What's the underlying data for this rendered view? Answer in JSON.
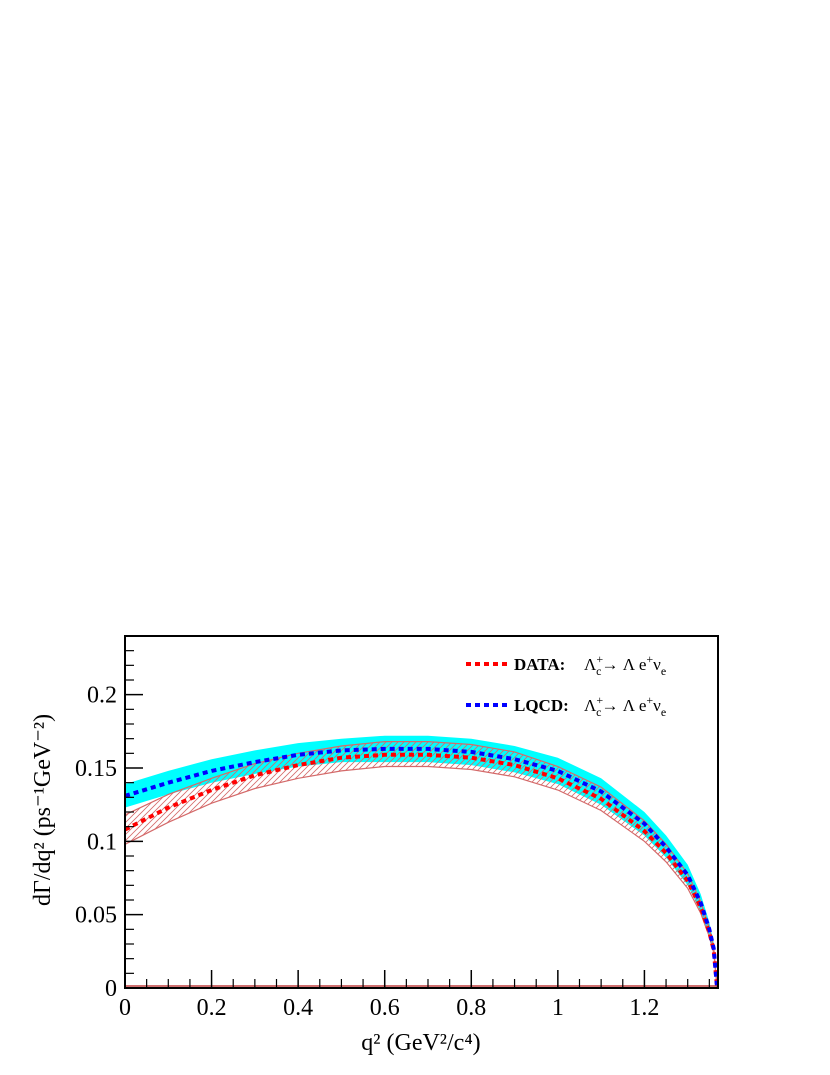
{
  "chart_data": {
    "type": "line",
    "title": "",
    "xlabel": "q² (GeV²/c⁴)",
    "ylabel": "dΓ/dq² (ps⁻¹GeV⁻²)",
    "xlim": [
      0,
      1.37
    ],
    "ylim": [
      0,
      0.24
    ],
    "x_ticks": [
      0,
      0.2,
      0.4,
      0.6,
      0.8,
      1,
      1.2
    ],
    "x_tick_labels": [
      "0",
      "0.2",
      "0.4",
      "0.6",
      "0.8",
      "1",
      "1.2"
    ],
    "y_ticks": [
      0,
      0.05,
      0.1,
      0.15,
      0.2
    ],
    "y_tick_labels": [
      "0",
      "0.05",
      "0.1",
      "0.15",
      "0.2"
    ],
    "grid": false,
    "legend_position": "top-right",
    "x": [
      0,
      0.1,
      0.2,
      0.3,
      0.4,
      0.5,
      0.6,
      0.7,
      0.8,
      0.9,
      1.0,
      1.1,
      1.2,
      1.25,
      1.3,
      1.33,
      1.35,
      1.36,
      1.368
    ],
    "series": [
      {
        "name": "DATA",
        "legend_label": "DATA:",
        "legend_formula": "Λc+→ Λ e+νe",
        "color": "#ff0000",
        "style": "dotted",
        "band": "hatched",
        "values": [
          0.108,
          0.123,
          0.135,
          0.145,
          0.152,
          0.157,
          0.159,
          0.159,
          0.157,
          0.152,
          0.143,
          0.129,
          0.107,
          0.092,
          0.073,
          0.055,
          0.038,
          0.026,
          0.0
        ],
        "upper": [
          0.118,
          0.132,
          0.143,
          0.153,
          0.16,
          0.165,
          0.168,
          0.168,
          0.166,
          0.161,
          0.151,
          0.137,
          0.114,
          0.098,
          0.078,
          0.059,
          0.041,
          0.028,
          0.0
        ],
        "lower": [
          0.098,
          0.113,
          0.126,
          0.136,
          0.143,
          0.148,
          0.151,
          0.151,
          0.149,
          0.144,
          0.135,
          0.121,
          0.1,
          0.086,
          0.068,
          0.051,
          0.035,
          0.024,
          0.0
        ]
      },
      {
        "name": "LQCD",
        "legend_label": "LQCD:",
        "legend_formula": "Λc+→ Λ e+νe",
        "color": "#0000ff",
        "style": "dotted",
        "band": "solid",
        "band_color": "#00ffff",
        "values": [
          0.131,
          0.14,
          0.148,
          0.154,
          0.159,
          0.162,
          0.163,
          0.163,
          0.161,
          0.156,
          0.148,
          0.134,
          0.112,
          0.096,
          0.077,
          0.058,
          0.04,
          0.027,
          0.0
        ],
        "upper": [
          0.139,
          0.148,
          0.156,
          0.162,
          0.167,
          0.17,
          0.172,
          0.172,
          0.17,
          0.165,
          0.157,
          0.143,
          0.12,
          0.104,
          0.084,
          0.064,
          0.045,
          0.031,
          0.0
        ],
        "lower": [
          0.123,
          0.132,
          0.14,
          0.146,
          0.151,
          0.154,
          0.154,
          0.154,
          0.152,
          0.147,
          0.139,
          0.125,
          0.104,
          0.089,
          0.07,
          0.052,
          0.036,
          0.024,
          0.0
        ]
      }
    ]
  }
}
